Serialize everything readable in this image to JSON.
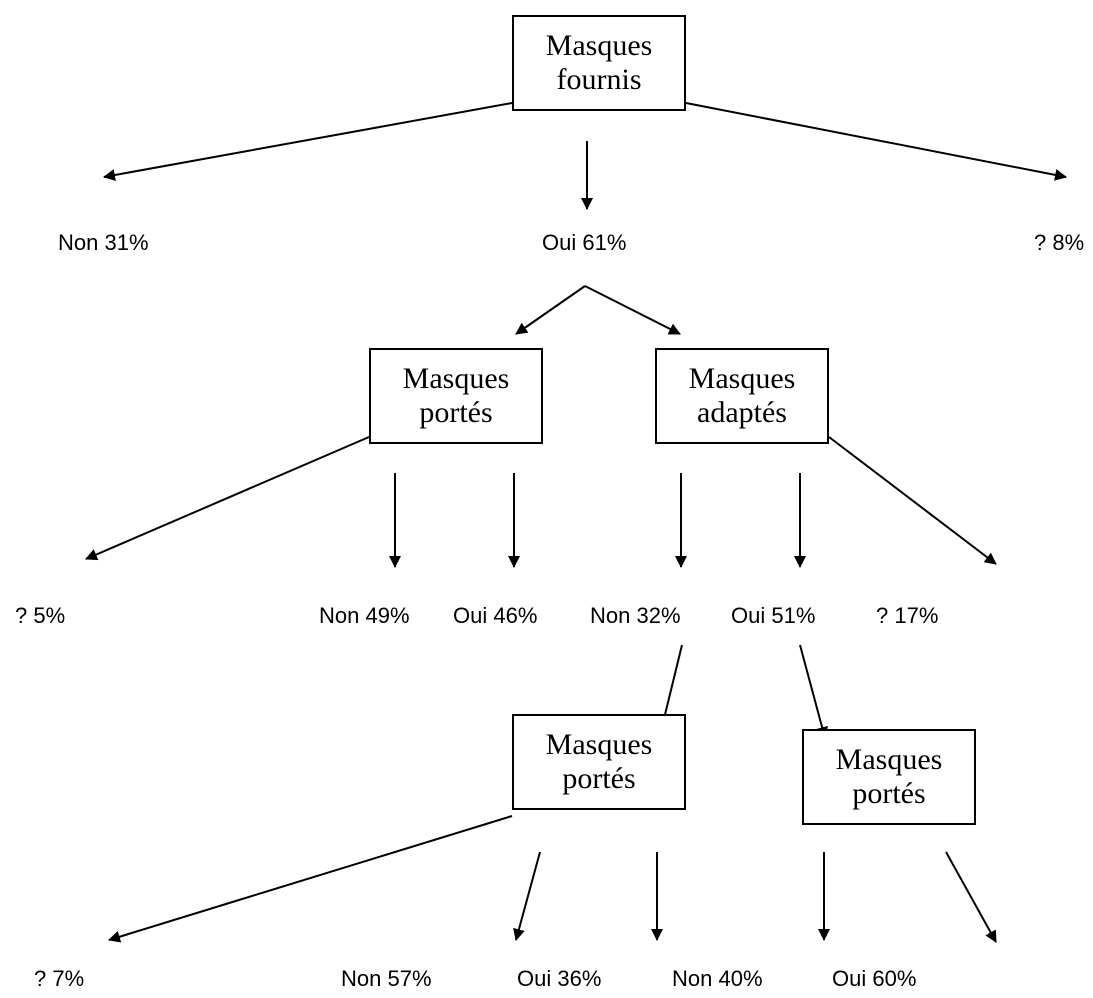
{
  "boxes": {
    "root": "Masques\nfournis",
    "worn_1": "Masques\nportés",
    "adapted": "Masques\nadaptés",
    "worn_2": "Masques\nportés",
    "worn_3": "Masques\nportés"
  },
  "labels": {
    "root_non": "Non 31%",
    "root_oui": "Oui 61%",
    "root_unknown": "? 8%",
    "worn1_unknown": "? 5%",
    "worn1_non": "Non 49%",
    "worn1_oui": "Oui 46%",
    "adapted_non": "Non 32%",
    "adapted_oui": "Oui 51%",
    "adapted_unknown": "? 17%",
    "worn2_unknown": "? 7%",
    "worn2_non": "Non 57%",
    "worn2_oui": "Oui 36%",
    "worn3_non": "Non 40%",
    "worn3_oui": "Oui 60%"
  }
}
